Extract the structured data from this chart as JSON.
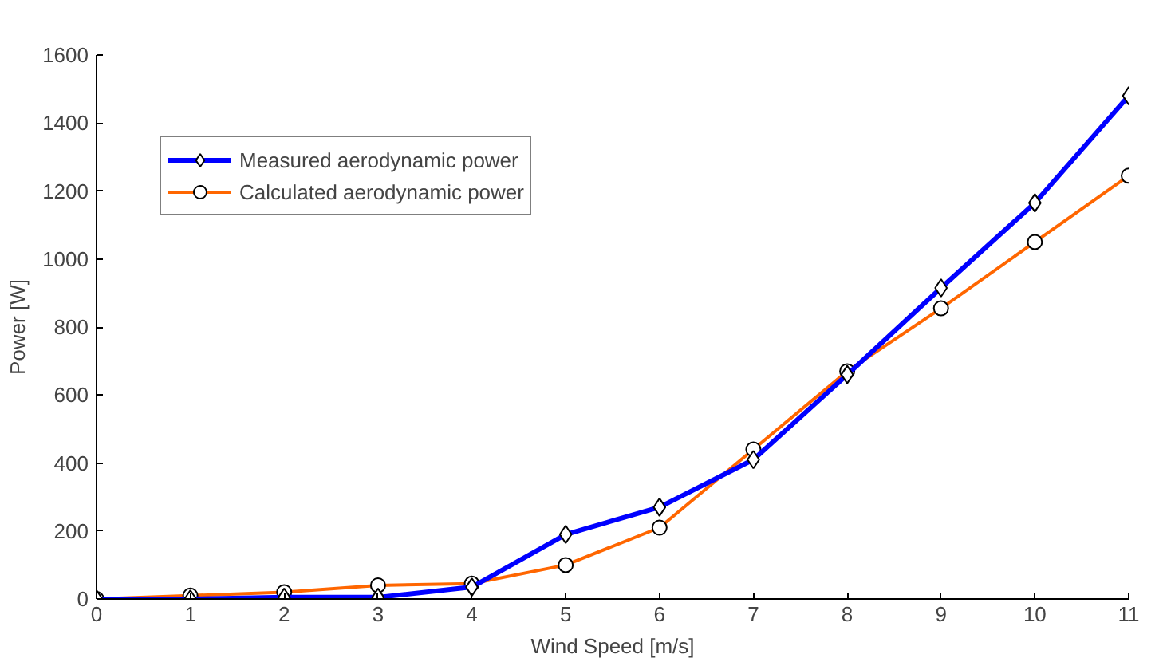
{
  "chart_data": {
    "type": "line",
    "xlabel": "Wind Speed [m/s]",
    "ylabel": "Power [W]",
    "x": [
      0,
      1,
      2,
      3,
      4,
      5,
      6,
      7,
      8,
      9,
      10,
      11
    ],
    "series": [
      {
        "name": "Measured aerodynamic power",
        "color": "#0000ff",
        "marker": "diamond",
        "values": [
          0,
          0,
          5,
          5,
          35,
          190,
          270,
          410,
          660,
          915,
          1165,
          1480
        ]
      },
      {
        "name": "Calculated aerodynamic power",
        "color": "#ff6600",
        "marker": "circle",
        "values": [
          0,
          10,
          20,
          40,
          45,
          100,
          210,
          440,
          670,
          855,
          1050,
          1245
        ]
      }
    ],
    "xlim": [
      0,
      11
    ],
    "xticks": [
      0,
      1,
      2,
      3,
      4,
      5,
      6,
      7,
      8,
      9,
      10,
      11
    ],
    "ylim": [
      0,
      1600
    ],
    "yticks": [
      0,
      200,
      400,
      600,
      800,
      1000,
      1200,
      1400,
      1600
    ],
    "grid": false,
    "legend": "top left",
    "line_style": "solid"
  }
}
